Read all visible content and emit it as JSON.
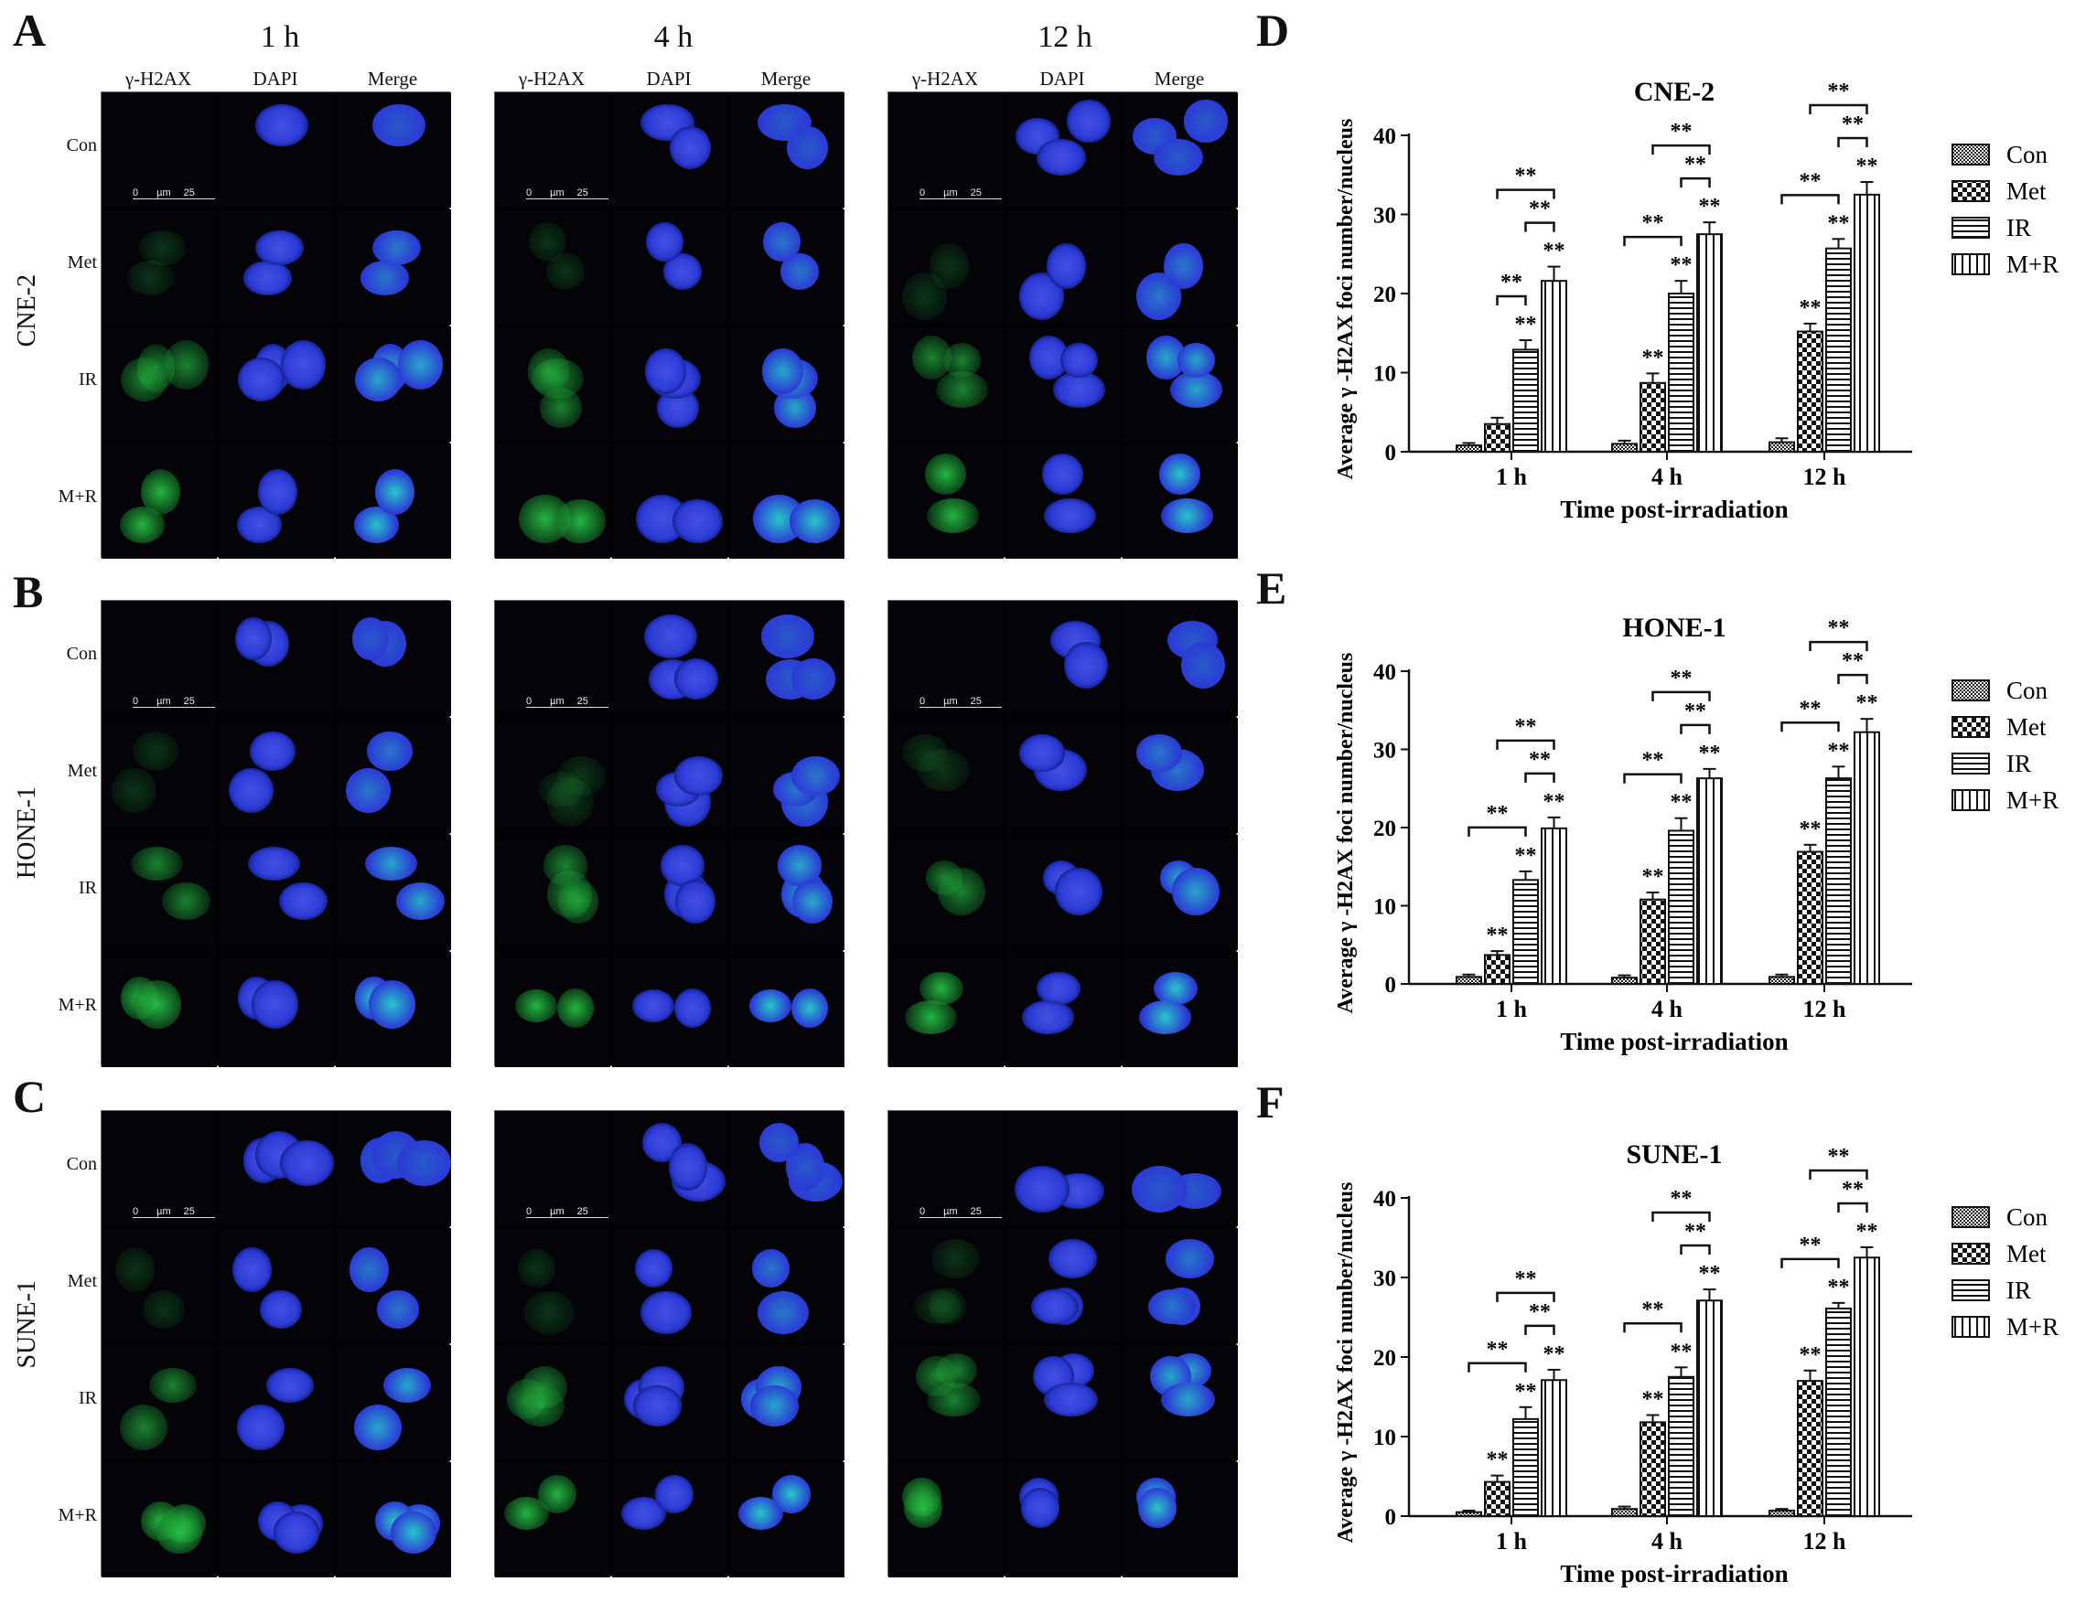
{
  "panels": {
    "A": "A",
    "B": "B",
    "C": "C",
    "D": "D",
    "E": "E",
    "F": "F"
  },
  "time_points": [
    "1 h",
    "4 h",
    "12 h"
  ],
  "columns": [
    "γ-H2AX",
    "DAPI",
    "Merge"
  ],
  "row_labels": [
    "Con",
    "Met",
    "IR",
    "M+R"
  ],
  "cell_lines": [
    "CNE-2",
    "HONE-1",
    "SUNE-1"
  ],
  "scale_bar": {
    "zero": "0",
    "unit": "µm",
    "value": "25"
  },
  "colors": {
    "gamma_h2ax": "#22c24a",
    "dapi": "#2b3bd6",
    "merge": "#2a9ab0"
  },
  "chart_data": [
    {
      "type": "bar",
      "title": "CNE-2",
      "xlabel": "Time post-irradiation",
      "ylabel": "Average γ -H2AX foci number/nucleus",
      "categories": [
        "1 h",
        "4 h",
        "12 h"
      ],
      "ylim": [
        0,
        40
      ],
      "yticks": [
        0,
        10,
        20,
        30,
        40
      ],
      "significance": "**",
      "series": [
        {
          "name": "Con",
          "values": [
            0.8,
            1.0,
            1.2
          ],
          "errors": [
            0.3,
            0.4,
            0.5
          ],
          "pattern": "checker-fine"
        },
        {
          "name": "Met",
          "values": [
            3.5,
            8.7,
            15.2
          ],
          "errors": [
            0.8,
            1.2,
            1.0
          ],
          "pattern": "checker"
        },
        {
          "name": "IR",
          "values": [
            12.9,
            20.0,
            25.7
          ],
          "errors": [
            1.2,
            1.6,
            1.2
          ],
          "pattern": "horizontal"
        },
        {
          "name": "M+R",
          "values": [
            21.6,
            27.5,
            32.5
          ],
          "errors": [
            1.8,
            1.5,
            1.6
          ],
          "pattern": "vertical"
        }
      ]
    },
    {
      "type": "bar",
      "title": "HONE-1",
      "xlabel": "Time post-irradiation",
      "ylabel": "Average γ -H2AX foci number/nucleus",
      "categories": [
        "1 h",
        "4 h",
        "12 h"
      ],
      "ylim": [
        0,
        40
      ],
      "yticks": [
        0,
        10,
        20,
        30,
        40
      ],
      "significance": "**",
      "series": [
        {
          "name": "Con",
          "values": [
            0.9,
            0.8,
            0.9
          ],
          "errors": [
            0.3,
            0.3,
            0.3
          ],
          "pattern": "checker-fine"
        },
        {
          "name": "Met",
          "values": [
            3.7,
            10.8,
            16.9
          ],
          "errors": [
            0.5,
            0.9,
            0.9
          ],
          "pattern": "checker"
        },
        {
          "name": "IR",
          "values": [
            13.3,
            19.6,
            26.3
          ],
          "errors": [
            1.1,
            1.6,
            1.5
          ],
          "pattern": "horizontal"
        },
        {
          "name": "M+R",
          "values": [
            19.9,
            26.3,
            32.2
          ],
          "errors": [
            1.4,
            1.2,
            1.7
          ],
          "pattern": "vertical"
        }
      ]
    },
    {
      "type": "bar",
      "title": "SUNE-1",
      "xlabel": "Time post-irradiation",
      "ylabel": "Average γ -H2AX foci number/nucleus",
      "categories": [
        "1 h",
        "4 h",
        "12 h"
      ],
      "ylim": [
        0,
        40
      ],
      "yticks": [
        0,
        10,
        20,
        30,
        40
      ],
      "significance": "**",
      "series": [
        {
          "name": "Con",
          "values": [
            0.5,
            0.9,
            0.7
          ],
          "errors": [
            0.2,
            0.3,
            0.2
          ],
          "pattern": "checker-fine"
        },
        {
          "name": "Met",
          "values": [
            4.3,
            11.8,
            17.0
          ],
          "errors": [
            0.8,
            0.9,
            1.3
          ],
          "pattern": "checker"
        },
        {
          "name": "IR",
          "values": [
            12.2,
            17.5,
            26.1
          ],
          "errors": [
            1.5,
            1.2,
            0.7
          ],
          "pattern": "horizontal"
        },
        {
          "name": "M+R",
          "values": [
            17.1,
            27.1,
            32.5
          ],
          "errors": [
            1.3,
            1.4,
            1.3
          ],
          "pattern": "vertical"
        }
      ]
    }
  ]
}
